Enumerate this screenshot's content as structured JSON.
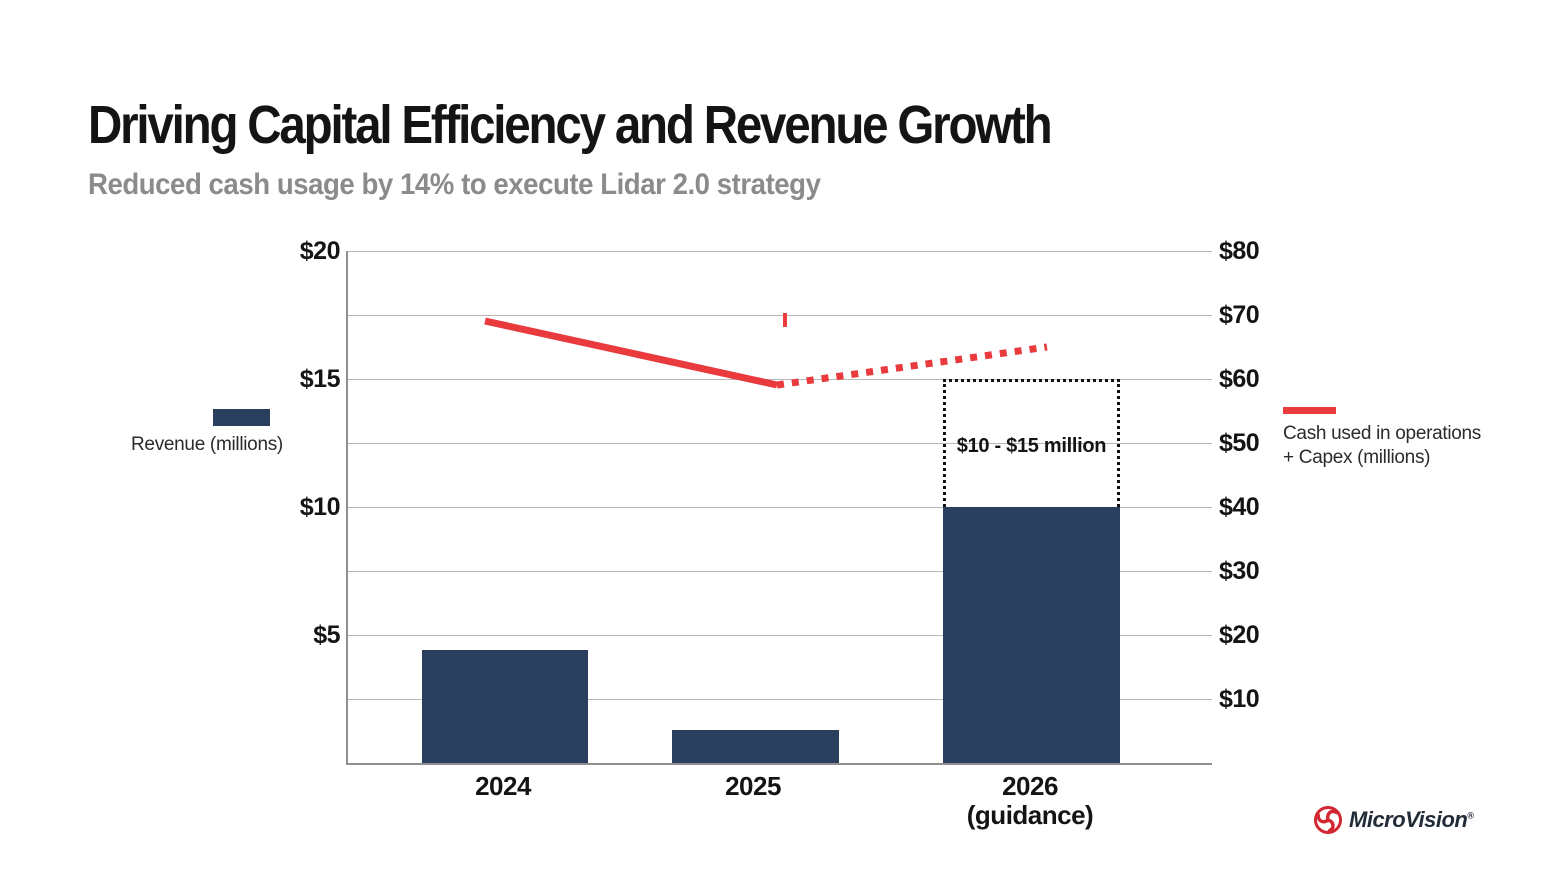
{
  "header": {
    "title": "Driving Capital Efficiency and Revenue Growth",
    "subtitle": "Reduced cash usage by 14% to execute Lidar 2.0 strategy"
  },
  "legends": {
    "revenue_label": "Revenue (millions)",
    "cash_label_line1": "Cash used in operations",
    "cash_label_line2": "+ Capex (millions)"
  },
  "logo": {
    "brand": "MicroVision",
    "registered_mark": "®"
  },
  "colors": {
    "bar_navy": "#2a3f5e",
    "line_red": "#e93a3e",
    "grid_gray": "#b7b7b7",
    "axis_gray": "#8f8f8f",
    "title_black": "#141414",
    "subtitle_gray": "#8b8b8b",
    "dotted_box_black": "#111111",
    "logo_red": "#d22630",
    "logo_text_navy": "#222c38"
  },
  "chart_data": {
    "type": "bar",
    "combo_with_line": true,
    "title": "Driving Capital Efficiency and Revenue Growth",
    "subtitle": "Reduced cash usage by 14% to execute Lidar 2.0 strategy",
    "categories": [
      "2024",
      "2025",
      "2026 (guidance)"
    ],
    "series": [
      {
        "name": "Revenue (millions)",
        "type": "bar",
        "axis": "left",
        "values": [
          4.4,
          1.3,
          10.0
        ]
      },
      {
        "name": "Cash used in operations + Capex (millions)",
        "type": "line",
        "axis": "right",
        "values": [
          69,
          59,
          65
        ],
        "segment_styles": [
          "solid",
          "dotted-projection"
        ]
      }
    ],
    "guidance_2026_revenue_range": [
      10,
      15
    ],
    "guidance_label": "$10 - $15 million",
    "left_axis": {
      "min": 0,
      "max": 20,
      "tick_step": 2.5,
      "labeled_every": 5,
      "display_ticks": [
        "$20",
        "$15",
        "$10",
        "$5"
      ]
    },
    "right_axis": {
      "min": 0,
      "max": 80,
      "tick_step": 10,
      "display_ticks": [
        "$80",
        "$70",
        "$60",
        "$50",
        "$40",
        "$30",
        "$20",
        "$10"
      ]
    },
    "x_tick_labels": {
      "c2024": "2024",
      "c2025": "2025",
      "c2026_line1": "2026",
      "c2026_line2": "(guidance)"
    },
    "gridlines": {
      "horizontal": true,
      "count_intervals": 8
    },
    "legend_position": "left and right sides of plot"
  }
}
